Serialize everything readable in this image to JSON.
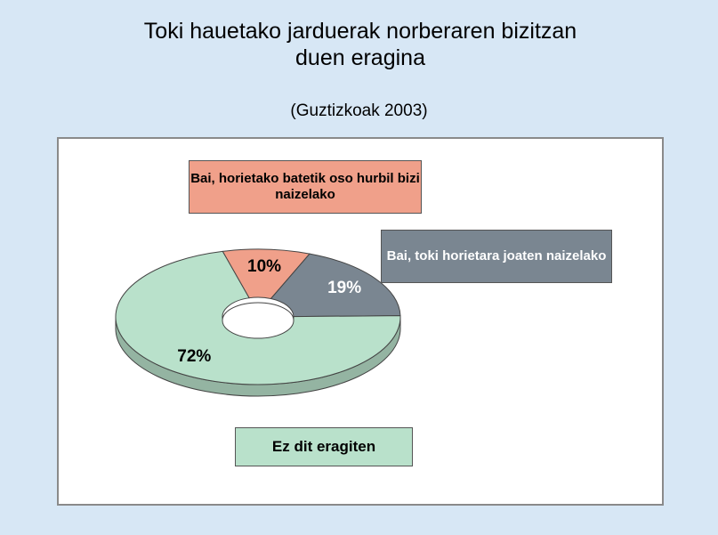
{
  "chart_data": {
    "type": "pie",
    "style": "donut-3d",
    "title": "Toki hauetako jarduerak norberaren bizitzan duen eragina",
    "subtitle": "(Guztizkoak 2003)",
    "categories": [
      "Bai, horietako batetik oso hurbil bizi naizelako",
      "Bai, toki horietara joaten naizelako",
      "Ez dit eragiten"
    ],
    "values": [
      10,
      19,
      72
    ],
    "value_labels": [
      "10%",
      "19%",
      "72%"
    ],
    "colors": [
      "#f0a08a",
      "#7a8691",
      "#b9e1cb"
    ]
  }
}
